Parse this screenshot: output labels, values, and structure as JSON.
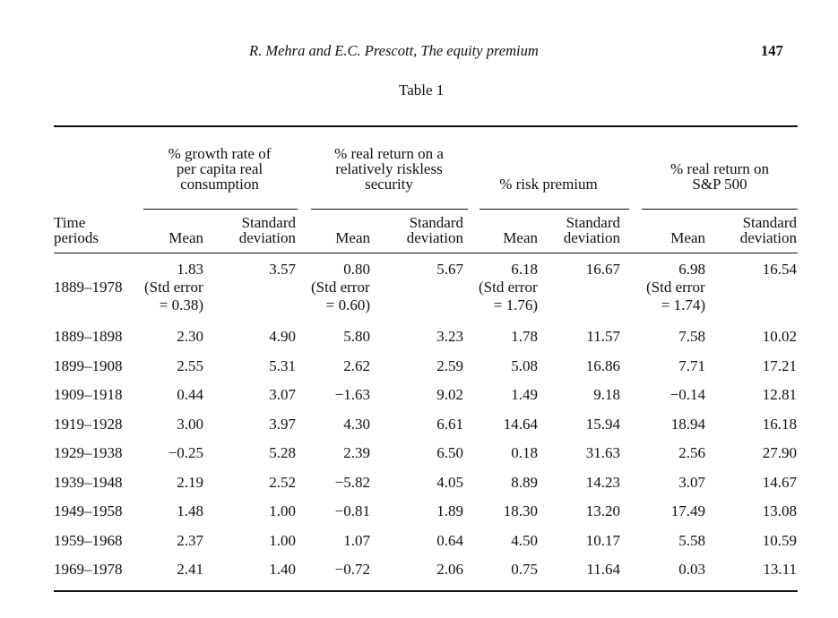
{
  "header": {
    "running_title": "R. Mehra and E.C. Prescott, The equity premium",
    "page_number": "147"
  },
  "table": {
    "caption": "Table 1",
    "groups": [
      {
        "lines": [
          "% growth rate of",
          "per capita real",
          "consumption"
        ]
      },
      {
        "lines": [
          "% real return on a",
          "relatively riskless",
          "security"
        ]
      },
      {
        "lines": [
          "% risk premium"
        ]
      },
      {
        "lines": [
          "% real return on",
          "S&P 500"
        ]
      }
    ],
    "row_header": [
      "Time",
      "periods"
    ],
    "sub_mean": "Mean",
    "sub_sd": [
      "Standard",
      "deviation"
    ],
    "full_period": {
      "period": "1889–1978",
      "values": [
        "1.83",
        "3.57",
        "0.80",
        "5.67",
        "6.18",
        "16.67",
        "6.98",
        "16.54"
      ],
      "std_errors": [
        [
          "(Std error",
          "= 0.38)"
        ],
        [
          "(Std error",
          "= 0.60)"
        ],
        [
          "(Std error",
          "= 1.76)"
        ],
        [
          "(Std error",
          "= 1.74)"
        ]
      ]
    },
    "rows": [
      {
        "period": "1889–1898",
        "values": [
          "2.30",
          "4.90",
          "5.80",
          "3.23",
          "1.78",
          "11.57",
          "7.58",
          "10.02"
        ]
      },
      {
        "period": "1899–1908",
        "values": [
          "2.55",
          "5.31",
          "2.62",
          "2.59",
          "5.08",
          "16.86",
          "7.71",
          "17.21"
        ]
      },
      {
        "period": "1909–1918",
        "values": [
          "0.44",
          "3.07",
          "−1.63",
          "9.02",
          "1.49",
          "9.18",
          "−0.14",
          "12.81"
        ]
      },
      {
        "period": "1919–1928",
        "values": [
          "3.00",
          "3.97",
          "4.30",
          "6.61",
          "14.64",
          "15.94",
          "18.94",
          "16.18"
        ]
      },
      {
        "period": "1929–1938",
        "values": [
          "−0.25",
          "5.28",
          "2.39",
          "6.50",
          "0.18",
          "31.63",
          "2.56",
          "27.90"
        ]
      },
      {
        "period": "1939–1948",
        "values": [
          "2.19",
          "2.52",
          "−5.82",
          "4.05",
          "8.89",
          "14.23",
          "3.07",
          "14.67"
        ]
      },
      {
        "period": "1949–1958",
        "values": [
          "1.48",
          "1.00",
          "−0.81",
          "1.89",
          "18.30",
          "13.20",
          "17.49",
          "13.08"
        ]
      },
      {
        "period": "1959–1968",
        "values": [
          "2.37",
          "1.00",
          "1.07",
          "0.64",
          "4.50",
          "10.17",
          "5.58",
          "10.59"
        ]
      },
      {
        "period": "1969–1978",
        "values": [
          "2.41",
          "1.40",
          "−0.72",
          "2.06",
          "0.75",
          "11.64",
          "0.03",
          "13.11"
        ]
      }
    ]
  }
}
